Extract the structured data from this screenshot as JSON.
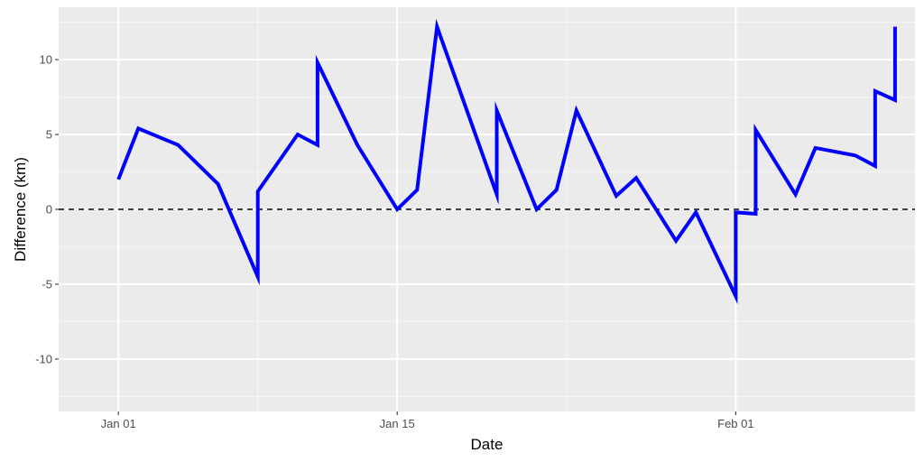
{
  "chart_data": {
    "type": "line",
    "title": "",
    "xlabel": "Date",
    "ylabel": "Difference (km)",
    "x_ticks": [
      {
        "label": "Jan 01",
        "date": "2024-01-01"
      },
      {
        "label": "Jan 15",
        "date": "2024-01-15"
      },
      {
        "label": "Feb 01",
        "date": "2024-02-01"
      }
    ],
    "y_ticks": [
      -10,
      -5,
      0,
      5,
      10
    ],
    "xlim": [
      "2023-12-29",
      "2024-02-10"
    ],
    "ylim": [
      -13.5,
      13.5
    ],
    "grid": true,
    "reference_line": {
      "y": 0,
      "style": "dashed",
      "color": "#000000"
    },
    "colors": {
      "line": "#0000ff",
      "panel_background": "#ebebeb",
      "grid_major": "#ffffff",
      "grid_minor": "#f5f5f5"
    },
    "series": [
      {
        "points": [
          {
            "x": "2024-01-01",
            "y": 2.0
          },
          {
            "x": "2024-01-02",
            "y": 5.4
          },
          {
            "x": "2024-01-04",
            "y": 4.3
          },
          {
            "x": "2024-01-06",
            "y": 1.7
          },
          {
            "x": "2024-01-08",
            "y": -4.5
          },
          {
            "x": "2024-01-08",
            "y": 1.2
          },
          {
            "x": "2024-01-10",
            "y": 5.0
          },
          {
            "x": "2024-01-11",
            "y": 4.3
          },
          {
            "x": "2024-01-11",
            "y": 9.8
          },
          {
            "x": "2024-01-13",
            "y": 4.3
          },
          {
            "x": "2024-01-15",
            "y": 0.0
          },
          {
            "x": "2024-01-16",
            "y": 1.3
          },
          {
            "x": "2024-01-17",
            "y": 12.2
          },
          {
            "x": "2024-01-20",
            "y": 1.0
          },
          {
            "x": "2024-01-20",
            "y": 6.6
          },
          {
            "x": "2024-01-22",
            "y": 0.0
          },
          {
            "x": "2024-01-23",
            "y": 1.3
          },
          {
            "x": "2024-01-24",
            "y": 6.6
          },
          {
            "x": "2024-01-26",
            "y": 0.9
          },
          {
            "x": "2024-01-27",
            "y": 2.1
          },
          {
            "x": "2024-01-29",
            "y": -2.1
          },
          {
            "x": "2024-01-30",
            "y": -0.2
          },
          {
            "x": "2024-02-01",
            "y": -5.8
          },
          {
            "x": "2024-02-01",
            "y": -0.2
          },
          {
            "x": "2024-02-02",
            "y": -0.3
          },
          {
            "x": "2024-02-02",
            "y": 5.3
          },
          {
            "x": "2024-02-04",
            "y": 1.0
          },
          {
            "x": "2024-02-05",
            "y": 4.1
          },
          {
            "x": "2024-02-07",
            "y": 3.6
          },
          {
            "x": "2024-02-08",
            "y": 2.9
          },
          {
            "x": "2024-02-08",
            "y": 7.9
          },
          {
            "x": "2024-02-09",
            "y": 7.3
          },
          {
            "x": "2024-02-09",
            "y": 12.2
          }
        ]
      }
    ]
  }
}
